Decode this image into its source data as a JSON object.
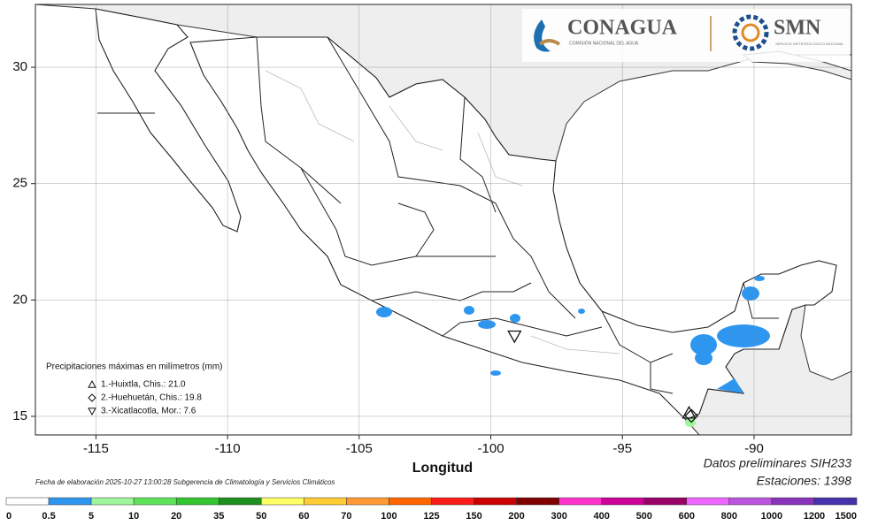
{
  "logos": {
    "conagua": "CONAGUA",
    "conagua_sub": "COMISIÓN NACIONAL DEL AGUA",
    "smn": "SMN",
    "smn_sub": "SERVICIO METEOROLÓGICO NACIONAL"
  },
  "axes": {
    "xlabel": "Longitud",
    "xlim": [
      -117.3,
      -86.3
    ],
    "ylim": [
      14.2,
      32.7
    ],
    "xticks": [
      -115,
      -110,
      -105,
      -100,
      -95,
      -90
    ],
    "yticks": [
      15,
      20,
      25,
      30
    ]
  },
  "legend": {
    "title": "Precipitaciones máximas en milímetros (mm)",
    "stations": [
      {
        "label": "1.-Huixtla, Chis.: 21.0",
        "lon": -92.47,
        "lat": 15.14
      },
      {
        "label": "2.-Huehuetán, Chis.: 19.8",
        "lon": -92.38,
        "lat": 15.02
      },
      {
        "label": "3.-Xicatlacotla, Mor.: 7.6",
        "lon": -99.1,
        "lat": 18.45
      }
    ]
  },
  "footer": {
    "date": "Fecha de elaboración 2025-10-27 13:00:28 Subgerencia de Climatología y Servicios Climáticos",
    "source": "Datos preliminares SIH233",
    "stations": "Estaciones:  1398"
  },
  "colorbar": {
    "bounds": [
      0,
      0.5,
      5,
      10,
      20,
      35,
      50,
      60,
      70,
      100,
      125,
      150,
      200,
      300,
      400,
      500,
      600,
      800,
      1000,
      1200,
      1500
    ],
    "colors": [
      "#ffffff",
      "#2f96f0",
      "#9ef59a",
      "#5fe35a",
      "#33c42f",
      "#1f8f1f",
      "#ffff66",
      "#ffcc33",
      "#ff9933",
      "#ff6600",
      "#ff1a1a",
      "#cc0000",
      "#800000",
      "#ff33cc",
      "#cc0099",
      "#990066",
      "#ee66ff",
      "#bb55dd",
      "#8833bb",
      "#4433aa"
    ]
  }
}
